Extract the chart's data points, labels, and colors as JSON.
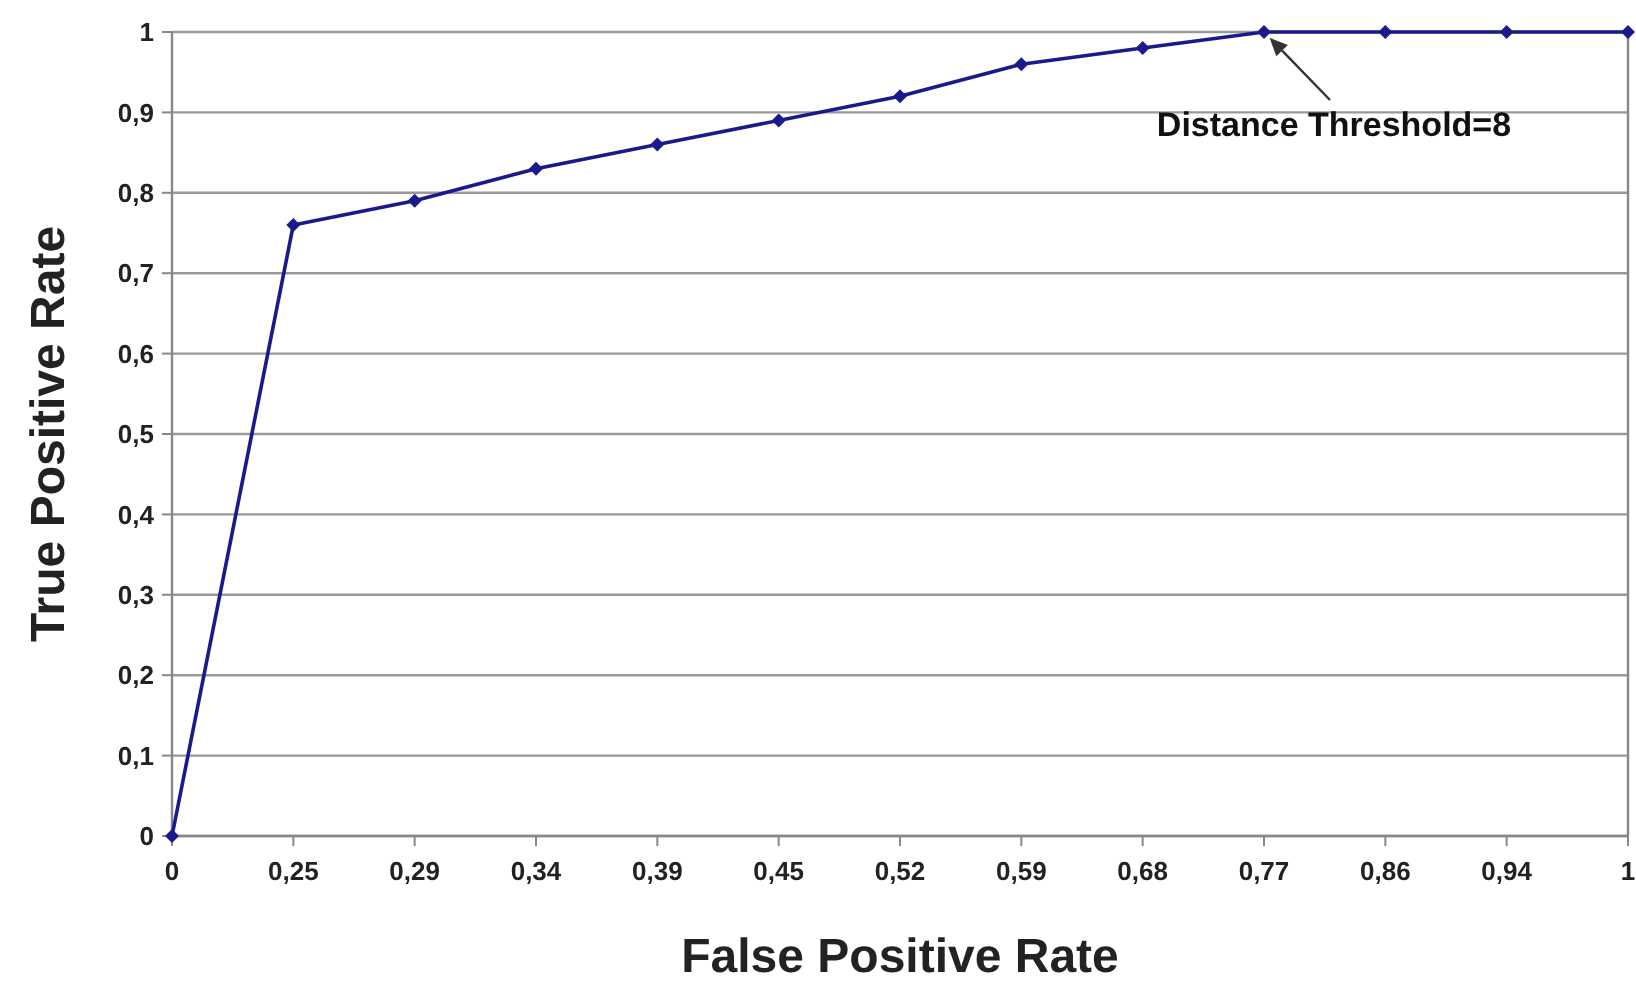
{
  "chart_data": {
    "type": "line",
    "xlabel": "False Positive Rate",
    "ylabel": "True Positive Rate",
    "categories": [
      "0",
      "0,25",
      "0,29",
      "0,34",
      "0,39",
      "0,45",
      "0,52",
      "0,59",
      "0,68",
      "0,77",
      "0,86",
      "0,94",
      "1"
    ],
    "series": [
      {
        "color": "#1a1a8c",
        "values": [
          0,
          0.76,
          0.79,
          0.83,
          0.86,
          0.89,
          0.92,
          0.96,
          0.98,
          1,
          1,
          1,
          1
        ]
      }
    ],
    "ylim": [
      0,
      1
    ],
    "yticks": [
      0,
      {
        "value": 0.1,
        "label": "0,1"
      },
      {
        "value": 0.2,
        "label": "0,2"
      },
      {
        "value": 0.3,
        "label": "0,3"
      },
      {
        "value": 0.4,
        "label": "0,4"
      },
      {
        "value": 0.5,
        "label": "0,5"
      },
      {
        "value": 0.6,
        "label": "0,6"
      },
      {
        "value": 0.7,
        "label": "0,7"
      },
      {
        "value": 0.8,
        "label": "0,8"
      },
      {
        "value": 0.9,
        "label": "0,9"
      },
      1
    ],
    "grid": "y",
    "marker": "diamond",
    "line_style": "solid",
    "annotations": [
      {
        "text": "Distance Threshold=8",
        "x": "0,77",
        "y": 1
      }
    ]
  }
}
